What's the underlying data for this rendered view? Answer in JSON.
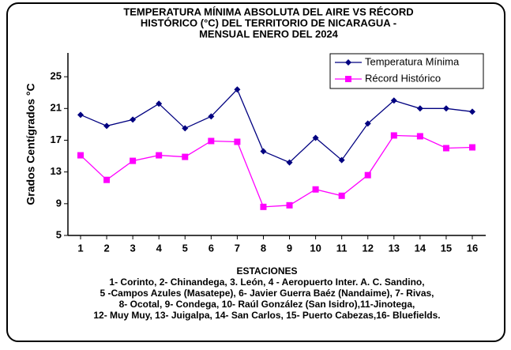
{
  "chart_data": {
    "type": "line",
    "title": [
      "TEMPERATURA  MÍNIMA ABSOLUTA DEL AIRE  VS RÉCORD",
      "HISTÓRICO  (°C) DEL TERRITORIO DE NICARAGUA  -",
      "MENSUAL  ENERO  DEL 2024"
    ],
    "y_label": "Grados Centígrados °C",
    "x_label": "ESTACIONES",
    "categories": [
      "1",
      "2",
      "3",
      "4",
      "5",
      "6",
      "7",
      "8",
      "9",
      "10",
      "11",
      "12",
      "13",
      "14",
      "15",
      "16"
    ],
    "series": [
      {
        "name": "Temperatura Mínima",
        "color": "#000080",
        "marker": "diamond",
        "values": [
          20.2,
          18.8,
          19.6,
          21.6,
          18.5,
          20.0,
          23.4,
          15.6,
          14.2,
          17.3,
          14.5,
          19.1,
          22.0,
          21.0,
          21.0,
          20.6
        ]
      },
      {
        "name": "Récord Histórico",
        "color": "#ff00ff",
        "marker": "square",
        "values": [
          15.1,
          12.0,
          14.4,
          15.1,
          14.9,
          16.9,
          16.8,
          8.6,
          8.8,
          10.8,
          10.0,
          12.6,
          17.6,
          17.5,
          16.0,
          16.1
        ]
      }
    ],
    "ylim": [
      5,
      28
    ],
    "yticks": [
      5,
      9,
      13,
      17,
      21,
      25
    ],
    "grid": false,
    "legend": "top-right",
    "footnote": [
      "1- Corinto,  2- Chinandega, 3. León, 4 - Aeropuerto Inter. A. C. Sandino,",
      "5 -Campos Azules (Masatepe), 6- Javier Guerra Baéz (Nandaime), 7- Rivas,",
      "8- Ocotal, 9- Condega, 10- Raúl González  (San Isidro),11-Jinotega,",
      "12- Muy Muy, 13- Juigalpa, 14- San Carlos, 15- Puerto Cabezas,16- Bluefields."
    ]
  }
}
